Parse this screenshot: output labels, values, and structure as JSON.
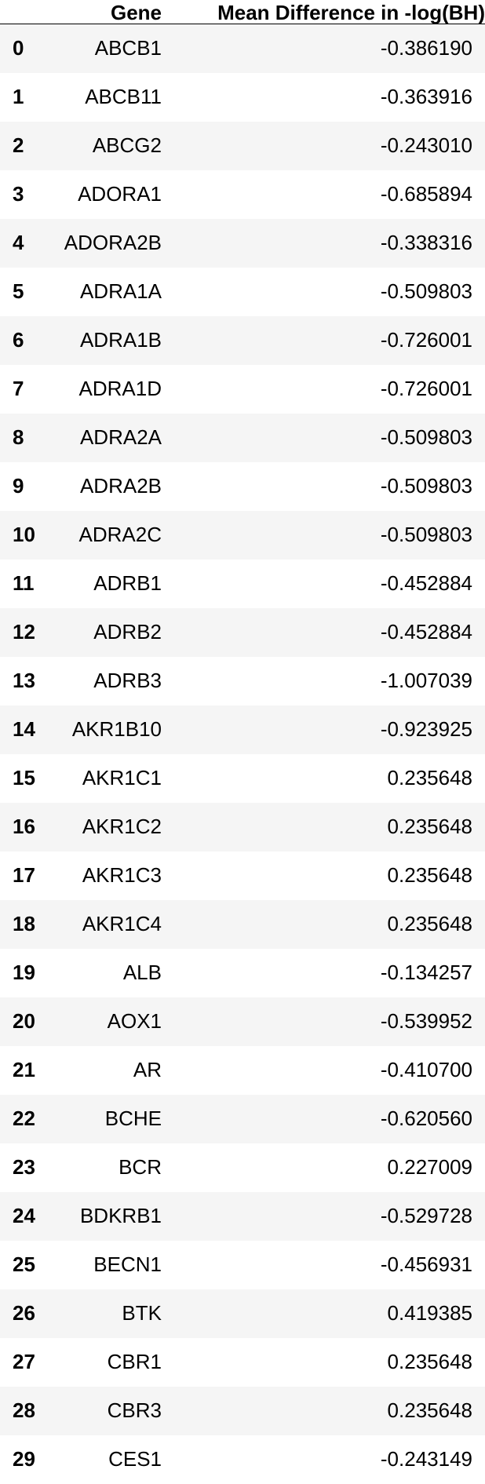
{
  "table": {
    "columns": [
      "Gene",
      "Mean Difference in -log(BH)"
    ],
    "rows": [
      {
        "index": "0",
        "gene": "ABCB1",
        "value": "-0.386190"
      },
      {
        "index": "1",
        "gene": "ABCB11",
        "value": "-0.363916"
      },
      {
        "index": "2",
        "gene": "ABCG2",
        "value": "-0.243010"
      },
      {
        "index": "3",
        "gene": "ADORA1",
        "value": "-0.685894"
      },
      {
        "index": "4",
        "gene": "ADORA2B",
        "value": "-0.338316"
      },
      {
        "index": "5",
        "gene": "ADRA1A",
        "value": "-0.509803"
      },
      {
        "index": "6",
        "gene": "ADRA1B",
        "value": "-0.726001"
      },
      {
        "index": "7",
        "gene": "ADRA1D",
        "value": "-0.726001"
      },
      {
        "index": "8",
        "gene": "ADRA2A",
        "value": "-0.509803"
      },
      {
        "index": "9",
        "gene": "ADRA2B",
        "value": "-0.509803"
      },
      {
        "index": "10",
        "gene": "ADRA2C",
        "value": "-0.509803"
      },
      {
        "index": "11",
        "gene": "ADRB1",
        "value": "-0.452884"
      },
      {
        "index": "12",
        "gene": "ADRB2",
        "value": "-0.452884"
      },
      {
        "index": "13",
        "gene": "ADRB3",
        "value": "-1.007039"
      },
      {
        "index": "14",
        "gene": "AKR1B10",
        "value": "-0.923925"
      },
      {
        "index": "15",
        "gene": "AKR1C1",
        "value": "0.235648"
      },
      {
        "index": "16",
        "gene": "AKR1C2",
        "value": "0.235648"
      },
      {
        "index": "17",
        "gene": "AKR1C3",
        "value": "0.235648"
      },
      {
        "index": "18",
        "gene": "AKR1C4",
        "value": "0.235648"
      },
      {
        "index": "19",
        "gene": "ALB",
        "value": "-0.134257"
      },
      {
        "index": "20",
        "gene": "AOX1",
        "value": "-0.539952"
      },
      {
        "index": "21",
        "gene": "AR",
        "value": "-0.410700"
      },
      {
        "index": "22",
        "gene": "BCHE",
        "value": "-0.620560"
      },
      {
        "index": "23",
        "gene": "BCR",
        "value": "0.227009"
      },
      {
        "index": "24",
        "gene": "BDKRB1",
        "value": "-0.529728"
      },
      {
        "index": "25",
        "gene": "BECN1",
        "value": "-0.456931"
      },
      {
        "index": "26",
        "gene": "BTK",
        "value": "0.419385"
      },
      {
        "index": "27",
        "gene": "CBR1",
        "value": "0.235648"
      },
      {
        "index": "28",
        "gene": "CBR3",
        "value": "0.235648"
      },
      {
        "index": "29",
        "gene": "CES1",
        "value": "-0.243149"
      }
    ]
  }
}
